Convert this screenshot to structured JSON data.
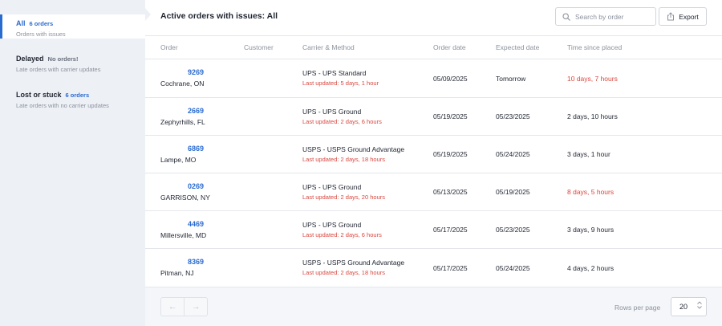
{
  "sidebar": {
    "items": [
      {
        "name": "All",
        "count": "6 orders",
        "description": "Orders with issues"
      },
      {
        "name": "Delayed",
        "count": "No orders!",
        "description": "Late orders with carrier updates"
      },
      {
        "name": "Lost or stuck",
        "count": "6 orders",
        "description": "Late orders with no carrier updates"
      }
    ]
  },
  "header": {
    "title": "Active orders with issues: All",
    "search_placeholder": "Search by order",
    "export_label": "Export"
  },
  "table": {
    "columns": [
      "Order",
      "Customer",
      "Carrier & Method",
      "Order date",
      "Expected date",
      "Time since placed"
    ],
    "rows": [
      {
        "order": "9269",
        "city": "Cochrane, ON",
        "method": "UPS - UPS Standard",
        "updated": "Last updated: 5 days, 1 hour",
        "order_date": "05/09/2025",
        "expected": "Tomorrow",
        "since": "10 days, 7 hours"
      },
      {
        "order": "2669",
        "city": "Zephyrhills, FL",
        "method": "UPS - UPS Ground",
        "updated": "Last updated: 2 days, 6 hours",
        "order_date": "05/19/2025",
        "expected": "05/23/2025",
        "since": "2 days, 10 hours"
      },
      {
        "order": "6869",
        "city": "Lampe, MO",
        "method": "USPS - USPS Ground Advantage",
        "updated": "Last updated: 2 days, 18 hours",
        "order_date": "05/19/2025",
        "expected": "05/24/2025",
        "since": "3 days, 1 hour"
      },
      {
        "order": "0269",
        "city": "GARRISON, NY",
        "method": "UPS - UPS Ground",
        "updated": "Last updated: 2 days, 20 hours",
        "order_date": "05/13/2025",
        "expected": "05/19/2025",
        "since": "8 days, 5 hours"
      },
      {
        "order": "4469",
        "city": "Millersville, MD",
        "method": "UPS - UPS Ground",
        "updated": "Last updated: 2 days, 6 hours",
        "order_date": "05/17/2025",
        "expected": "05/23/2025",
        "since": "3 days, 9 hours"
      },
      {
        "order": "8369",
        "city": "Pitman, NJ",
        "method": "USPS - USPS Ground Advantage",
        "updated": "Last updated: 2 days, 18 hours",
        "order_date": "05/17/2025",
        "expected": "05/24/2025",
        "since": "4 days, 2 hours"
      }
    ]
  },
  "footer": {
    "prev_icon": "←",
    "next_icon": "→",
    "rows_per_page_label": "Rows per page",
    "rows_per_page_value": "20"
  },
  "colors": {
    "accent": "#2a6bd0",
    "alert": "#d9473f",
    "sidebar_bg": "#edf0f5"
  }
}
